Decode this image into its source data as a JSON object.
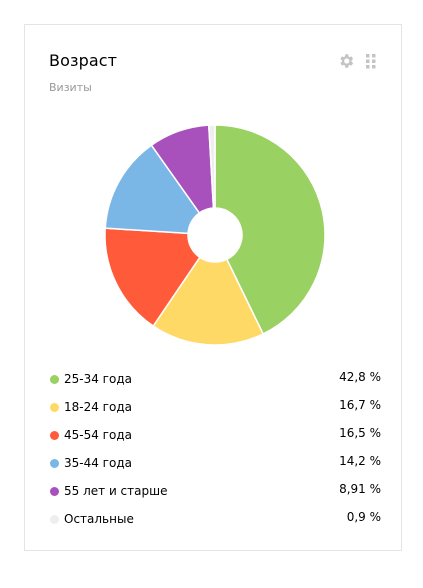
{
  "widget": {
    "title": "Возраст",
    "subtitle": "Визиты",
    "settings_icon": "gear-icon",
    "drag_icon": "grip-icon"
  },
  "chart_data": {
    "type": "pie",
    "donut": true,
    "title": "Возраст",
    "subtitle": "Визиты",
    "legend_position": "bottom",
    "slices": [
      {
        "label": "25-34 года",
        "value": 42.8,
        "display": "42,8 %",
        "color": "#99d162"
      },
      {
        "label": "18-24 года",
        "value": 16.7,
        "display": "16,7 %",
        "color": "#ffd966"
      },
      {
        "label": "45-54 года",
        "value": 16.5,
        "display": "16,5 %",
        "color": "#ff5b3b"
      },
      {
        "label": "35-44 года",
        "value": 14.2,
        "display": "14,2 %",
        "color": "#7ab7e6"
      },
      {
        "label": "55 лет и старше",
        "value": 8.91,
        "display": "8,91 %",
        "color": "#a850bb"
      },
      {
        "label": "Остальные",
        "value": 0.9,
        "display": "0,9 %",
        "color": "#eeeeee"
      }
    ]
  }
}
